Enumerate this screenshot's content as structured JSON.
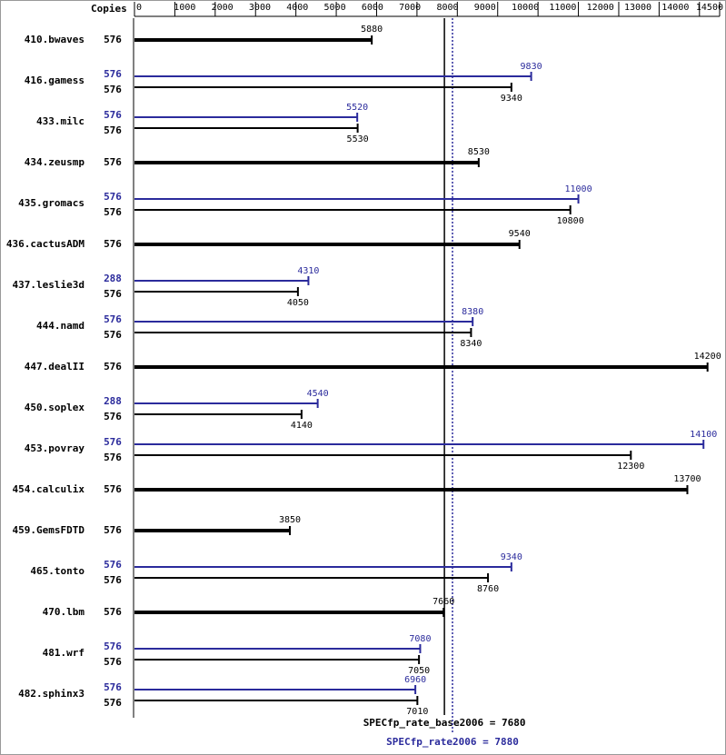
{
  "chart_data": {
    "type": "bar",
    "orientation": "horizontal",
    "copies_label": "Copies",
    "categories": [
      "410.bwaves",
      "416.gamess",
      "433.milc",
      "434.zeusmp",
      "435.gromacs",
      "436.cactusADM",
      "437.leslie3d",
      "444.namd",
      "447.dealII",
      "450.soplex",
      "453.povray",
      "454.calculix",
      "459.GemsFDTD",
      "465.tonto",
      "470.lbm",
      "481.wrf",
      "482.sphinx3"
    ],
    "series": [
      {
        "color": "#2b2b9c",
        "copies": [
          null,
          576,
          576,
          null,
          576,
          null,
          288,
          576,
          null,
          288,
          576,
          null,
          null,
          576,
          null,
          576,
          576
        ],
        "values": [
          null,
          9830,
          5520,
          null,
          11000,
          null,
          4310,
          8380,
          null,
          4540,
          14100,
          null,
          null,
          9340,
          null,
          7080,
          6960
        ]
      },
      {
        "color": "#000000",
        "copies": [
          576,
          576,
          576,
          576,
          576,
          576,
          576,
          576,
          576,
          576,
          576,
          576,
          576,
          576,
          576,
          576,
          576
        ],
        "values": [
          5880,
          9340,
          5530,
          8530,
          10800,
          9540,
          4050,
          8340,
          14200,
          4140,
          12300,
          13700,
          3850,
          8760,
          7660,
          7050,
          7010
        ]
      }
    ],
    "reference_lines": [
      {
        "label": "SPECfp_rate_base2006 = 7680",
        "value": 7680,
        "color": "#000000",
        "style": "solid"
      },
      {
        "label": "SPECfp_rate2006 = 7880",
        "value": 7880,
        "color": "#2b2b9c",
        "style": "dotted"
      }
    ],
    "xlim": [
      0,
      14500
    ],
    "xticks": [
      0,
      1000,
      2000,
      3000,
      4000,
      5000,
      6000,
      7000,
      8000,
      9000,
      10000,
      11000,
      12000,
      13000,
      14000,
      14500
    ]
  }
}
